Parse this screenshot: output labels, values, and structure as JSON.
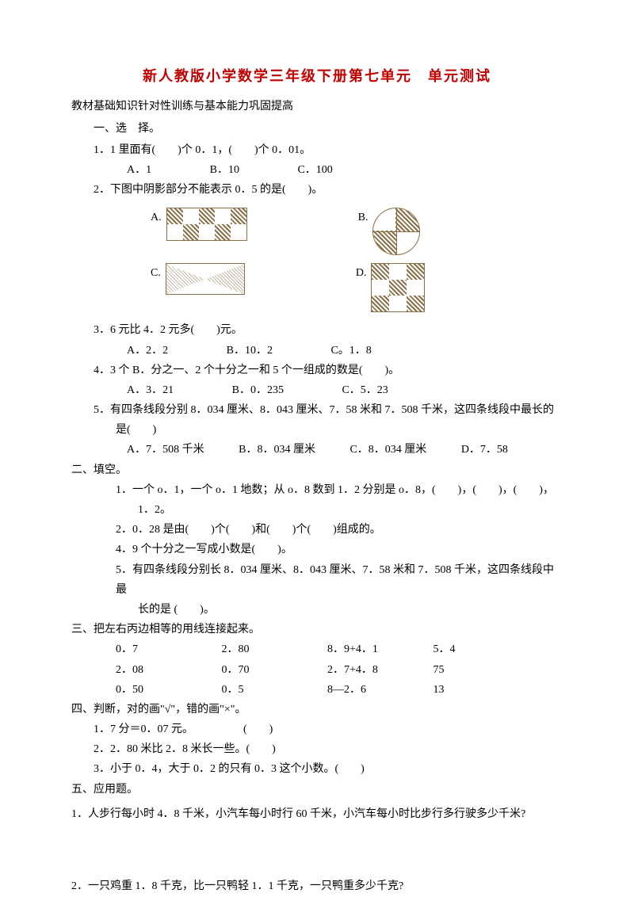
{
  "title": "新人教版小学数学三年级下册第七单元　单元测试",
  "subtitle": "教材基础知识针对性训练与基本能力巩固提高",
  "sec1": {
    "heading": "一、选　择。",
    "q1": "1．1 里面有(　　)个 0．1，(　　)个 0．01。",
    "q1_opts": {
      "a": "A．1",
      "b": "B．10",
      "c": "C．100"
    },
    "q2": "2．下图中阴影部分不能表示 0．5 的是(　　)。",
    "fig_labels": {
      "a": "A.",
      "b": "B.",
      "c": "C.",
      "d": "D."
    },
    "q3": "3．6 元比 4．2 元多(　　)元。",
    "q3_opts": {
      "a": "A．2．2",
      "b": "B．10．2",
      "c": "C。1．8"
    },
    "q4": "4．3 个 B．分之一、2 个十分之一和 5 个一组成的数是(　　)。",
    "q4_opts": {
      "a": "A．3．21",
      "b": "B．0．235",
      "c": "C．5．23"
    },
    "q5a": "5．有四条线段分别 8．034 厘米、8．043 厘米、7．58 米和 7．508 千米，这四条线段中最长的",
    "q5b": "是(　　)",
    "q5_opts": {
      "a": "A．7．508 千米",
      "b": "B．8．034 厘米",
      "c": "C．8．034 厘米",
      "d": "D．7．58"
    }
  },
  "sec2": {
    "heading": "二、填空。",
    "q1a": "1．一个 o．1，一个 o．1 地数；从 o．8 数到 1．2 分别是 o．8，(　　)，(　　)，(　　)，",
    "q1b": "1．2。",
    "q2": "2．0．28 是由(　　)个(　　)和(　　)个(　　)组成的。",
    "q4": "4．9 个十分之一写成小数是(　　)。",
    "q5a": "5．有四条线段分别长 8．034 厘米、8．043 厘米、7．58 米和 7．508 千米，这四条线段中最",
    "q5b": "长的是 (　　)。"
  },
  "sec3": {
    "heading": "三、把左右丙边相等的用线连接起来。",
    "rows": [
      [
        "0．7",
        "2．80",
        "8．9+4．1",
        "5．4"
      ],
      [
        "2．08",
        "0．70",
        "2．7+4．8",
        "75"
      ],
      [
        "0．50",
        "0．5",
        "8—2．6",
        "13"
      ]
    ]
  },
  "sec4": {
    "heading": "四、判断，对的画\"√\"，错的画\"×\"。",
    "q1": "1．7 分＝0．07 元。　　　　　(　　)",
    "q2": "2．2．80 米比 2．8 米长一些。(　　)",
    "q3": "3．小于 0．4，大于 0．2 的只有 0．3 这个小数。(　　)"
  },
  "sec5": {
    "heading": "五、应用题。",
    "q1": "1．人步行每小时 4．8 千米，小汽车每小时行 60 千米，小汽车每小时比步行多行驶多少千米?",
    "q2": "2．一只鸡重 1．8 千克，比一只鸭轻 1．1 千克，一只鸭重多少千克?"
  }
}
